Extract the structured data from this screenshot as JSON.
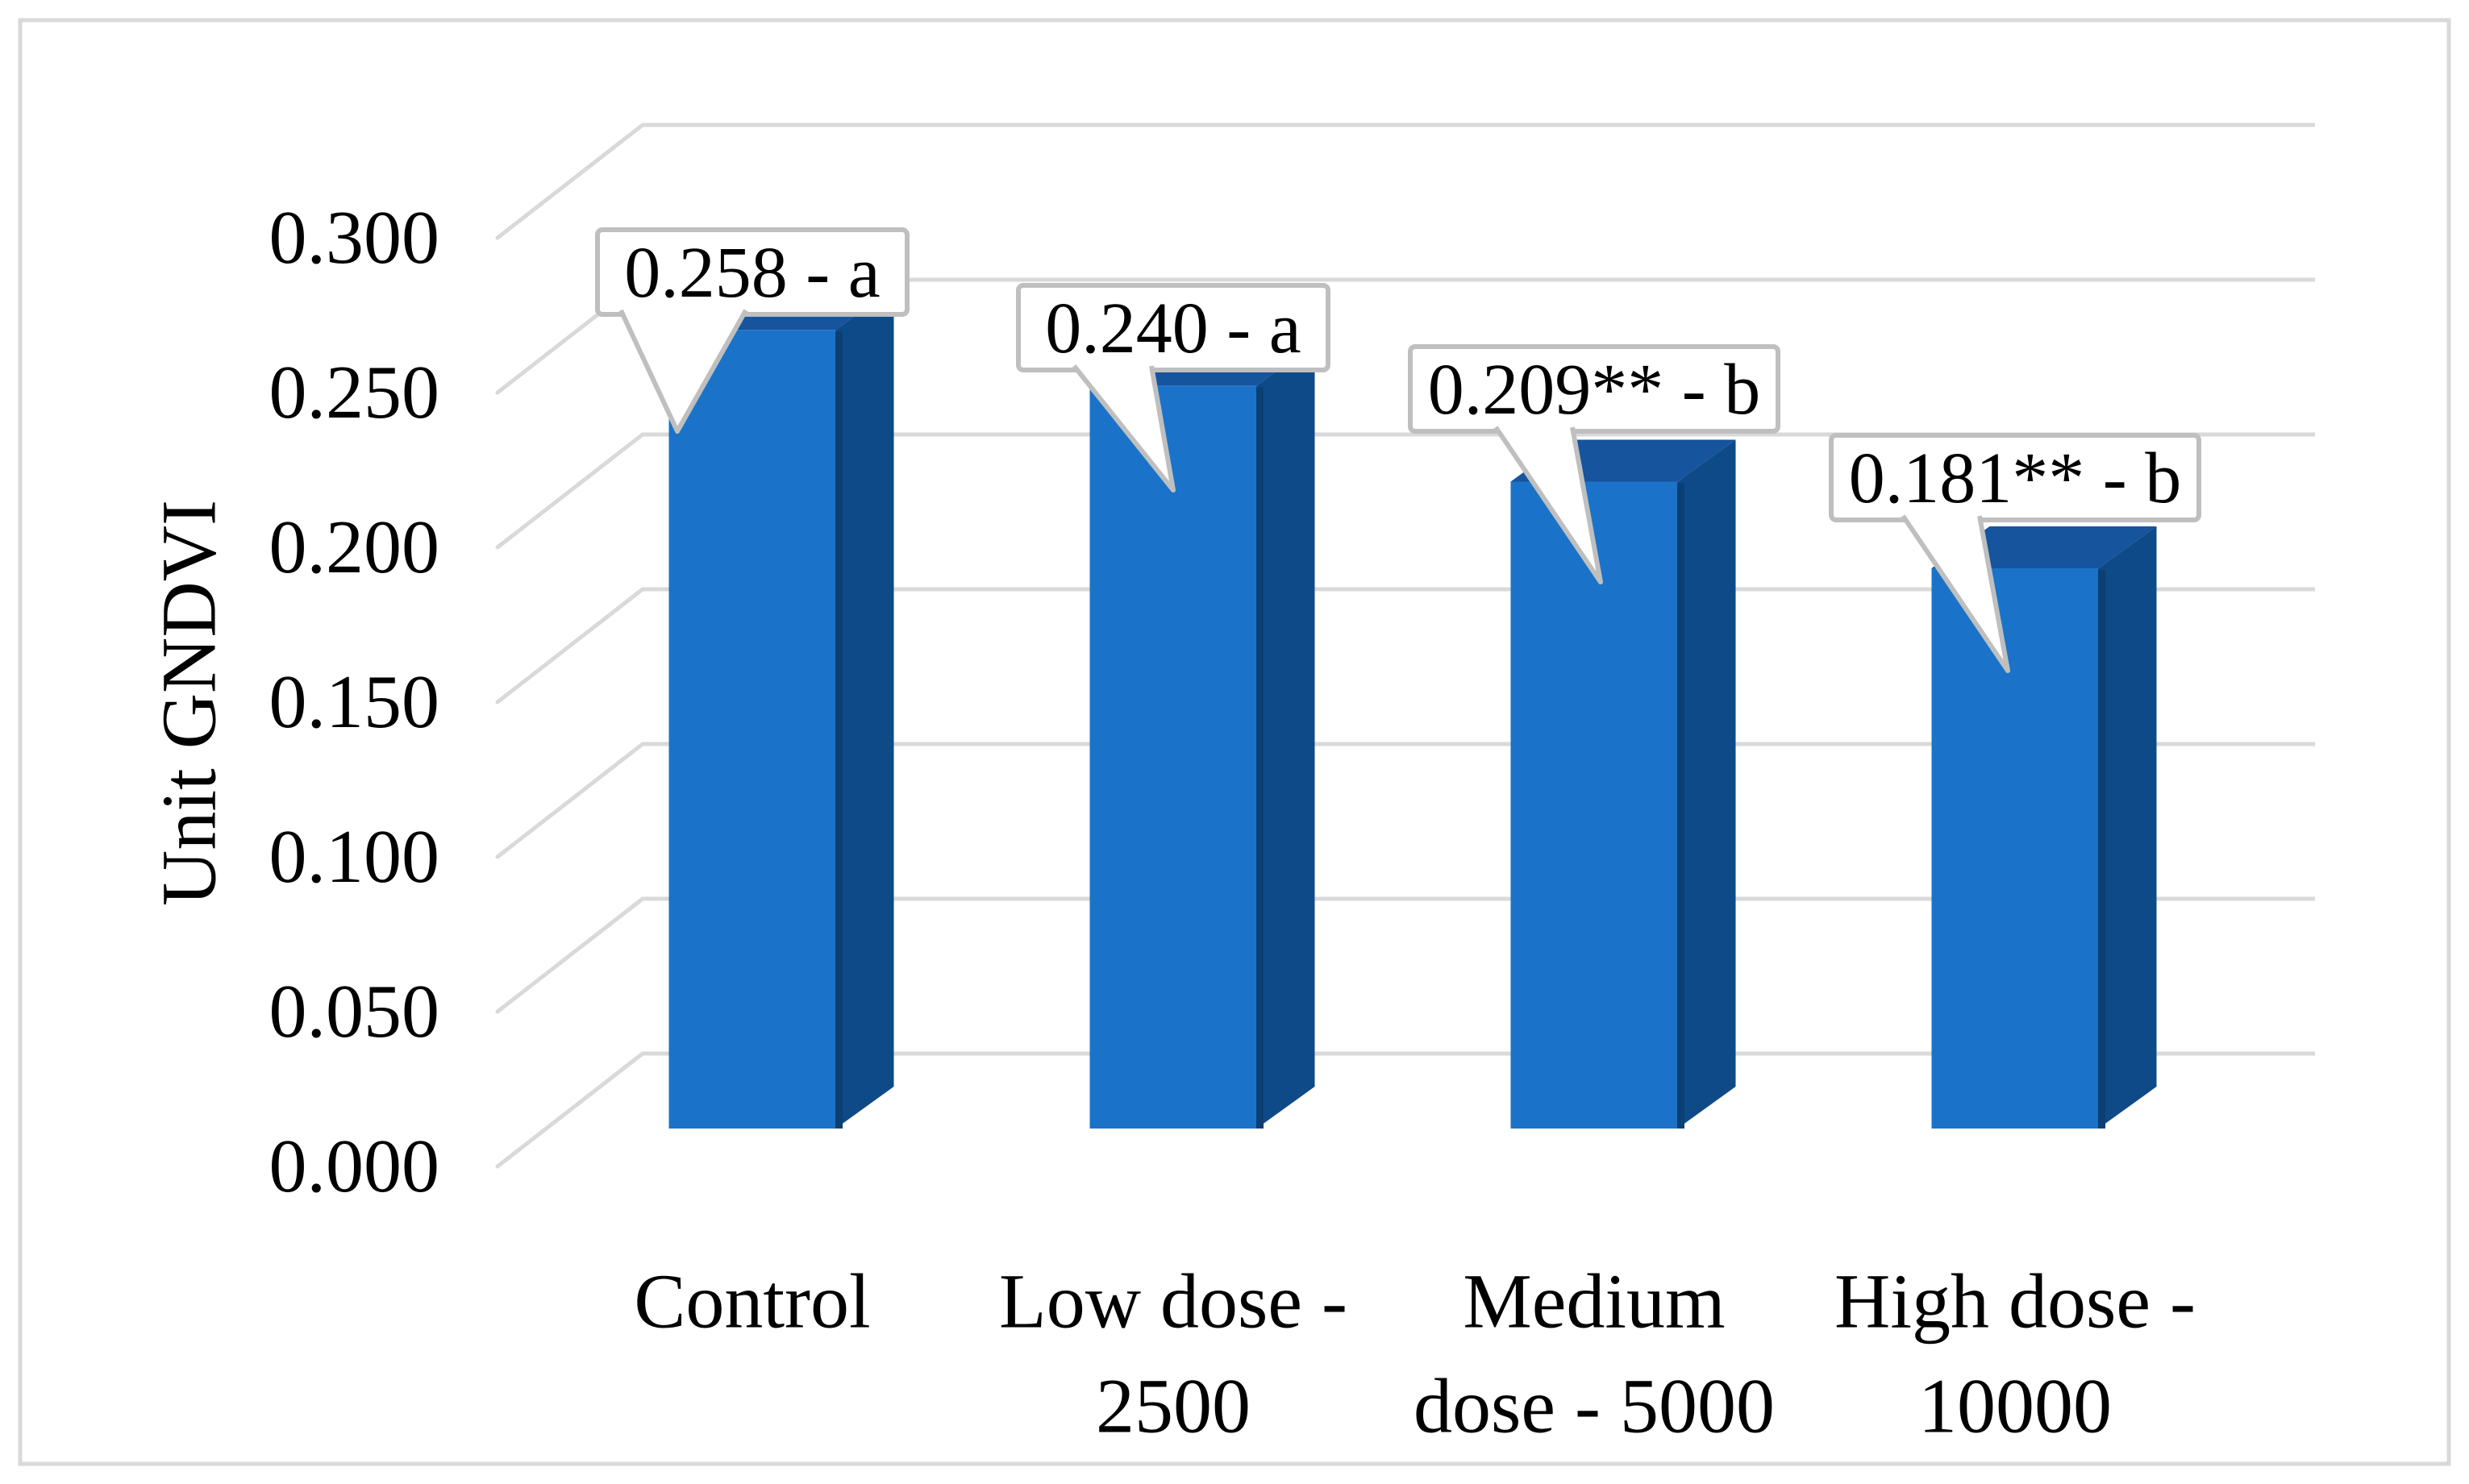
{
  "chart_data": {
    "type": "bar",
    "style": "3d-column",
    "title": "",
    "xlabel": "",
    "ylabel": "Unit GNDVI",
    "categories": [
      "Control",
      "Low dose - 2500",
      "Medium dose - 5000",
      "High dose - 10000"
    ],
    "category_label_lines": [
      [
        "Control"
      ],
      [
        "Low dose -",
        "2500"
      ],
      [
        "Medium",
        "dose - 5000"
      ],
      [
        "High dose -",
        "10000"
      ]
    ],
    "series": [
      {
        "name": "GNDVI",
        "values": [
          0.258,
          0.24,
          0.209,
          0.181
        ]
      }
    ],
    "data_labels": [
      "0.258 - a",
      "0.240 - a",
      "0.209** - b",
      "0.181** - b"
    ],
    "significance_letters": [
      "a",
      "a",
      "b",
      "b"
    ],
    "y_ticks": [
      0.0,
      0.05,
      0.1,
      0.15,
      0.2,
      0.25,
      0.3
    ],
    "y_tick_labels": [
      "0.000",
      "0.050",
      "0.100",
      "0.150",
      "0.200",
      "0.250",
      "0.300"
    ],
    "ylim": [
      0,
      0.3
    ],
    "grid": "horizontal-back-wall",
    "legend": "none",
    "colors": {
      "bar_front": "#1A73C8",
      "bar_side": "#0E4A87",
      "bar_top": "#16549D",
      "bar_edge_dark": "#0C3F73",
      "gridline": "#D9D9D9",
      "frame": "#D9D9D9",
      "callout_border": "#BFBFBF",
      "callout_fill": "#FFFFFF",
      "text": "#000000",
      "background": "#FFFFFF"
    }
  }
}
